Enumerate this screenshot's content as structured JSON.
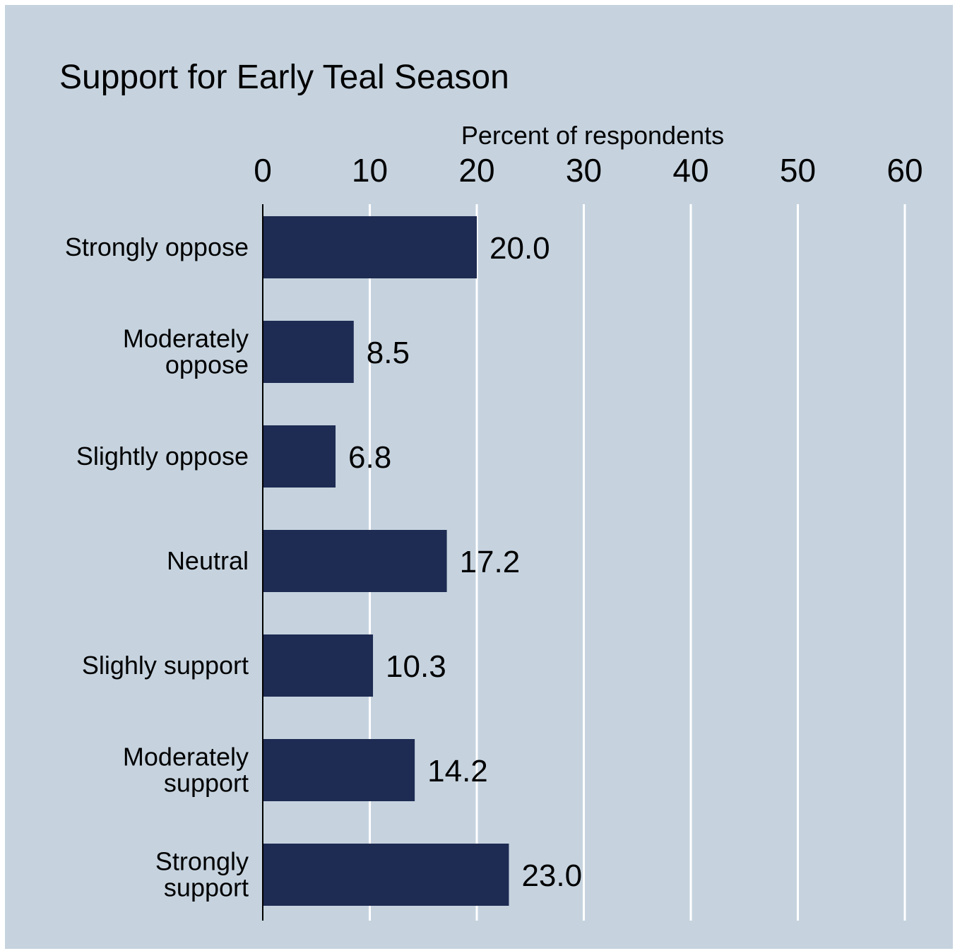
{
  "chart_data": {
    "type": "bar",
    "orientation": "horizontal",
    "title": "Support for Early Teal Season",
    "xlabel": "Percent of respondents",
    "ylabel": "",
    "categories": [
      [
        "Strongly oppose"
      ],
      [
        "Moderately",
        "oppose"
      ],
      [
        "Slightly oppose"
      ],
      [
        "Neutral"
      ],
      [
        "Slighly support"
      ],
      [
        "Moderately",
        "support"
      ],
      [
        "Strongly",
        "support"
      ]
    ],
    "values": [
      20.0,
      8.5,
      6.8,
      17.2,
      10.3,
      14.2,
      23.0
    ],
    "value_labels": [
      "20.0",
      "8.5",
      "6.8",
      "17.2",
      "10.3",
      "14.2",
      "23.0"
    ],
    "xlim": [
      0,
      60
    ],
    "xticks": [
      0,
      10,
      20,
      30,
      40,
      50,
      60
    ],
    "x_axis_position": "top",
    "grid": true,
    "legend": "none",
    "colors": {
      "background": "#c6d3df",
      "bar": "#1e2b52",
      "grid": "#ffffff",
      "axis": "#000000",
      "text": "#000000"
    }
  }
}
